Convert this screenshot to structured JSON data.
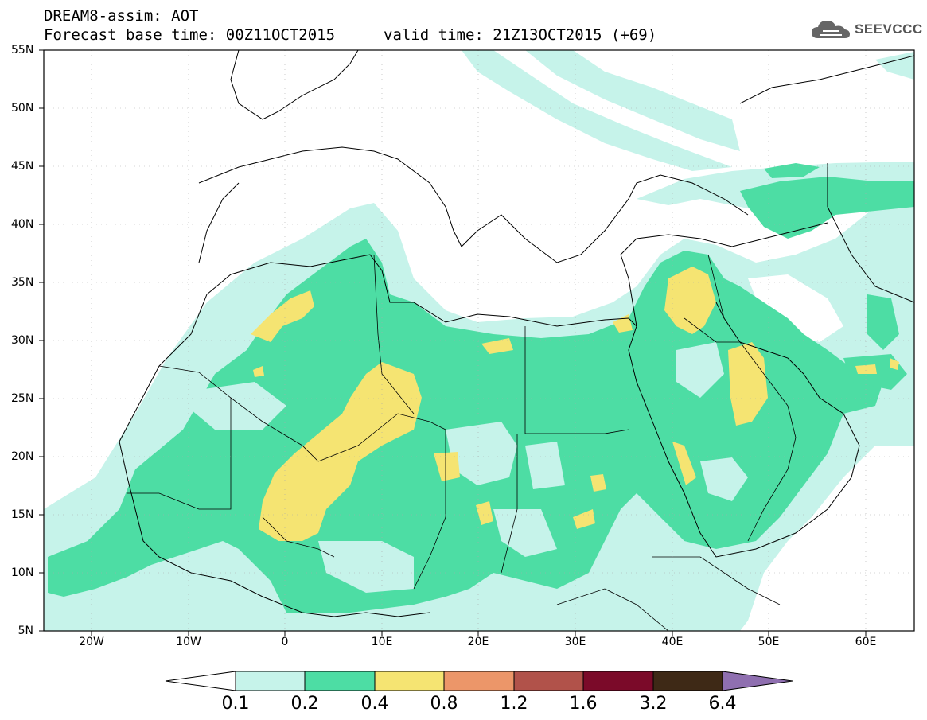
{
  "header": {
    "title_line1": "DREAM8-assim: AOT",
    "title_line2": "Forecast base time: 00Z11OCT2015",
    "valid_time": "valid time: 21Z13OCT2015 (+69)",
    "logo_text": "SEEVCCC"
  },
  "map": {
    "lat_range": [
      5,
      55
    ],
    "lon_range": [
      -25,
      65
    ],
    "lat_labels": [
      "55N",
      "50N",
      "45N",
      "40N",
      "35N",
      "30N",
      "25N",
      "20N",
      "15N",
      "10N",
      "5N"
    ],
    "lon_labels": [
      "20W",
      "10W",
      "0",
      "10E",
      "20E",
      "30E",
      "40E",
      "50E",
      "60E"
    ]
  },
  "colorbar": {
    "labels": [
      "0.1",
      "0.2",
      "0.4",
      "0.8",
      "1.2",
      "1.6",
      "3.2",
      "6.4"
    ],
    "colors": [
      "#c6f3ea",
      "#4ddda4",
      "#f5e472",
      "#ec9669",
      "#b1524a",
      "#7b0a29",
      "#3e2916",
      "#8f6fb0"
    ]
  }
}
